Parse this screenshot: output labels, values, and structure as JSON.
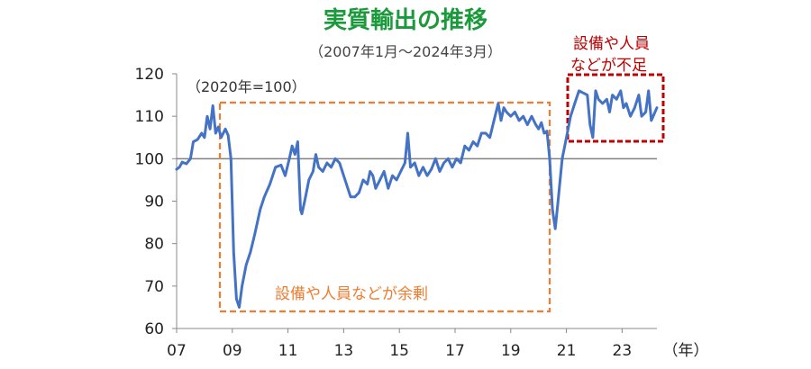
{
  "chart_data": {
    "type": "line",
    "title": "実質輸出の推移",
    "subtitle": "（2007年1月～2024年3月）",
    "base_label": "（2020年=100）",
    "x_unit_label": "（年）",
    "x_tick_labels": [
      "07",
      "09",
      "11",
      "13",
      "15",
      "17",
      "19",
      "21",
      "23"
    ],
    "x_ticks": [
      2007,
      2009,
      2011,
      2013,
      2015,
      2017,
      2019,
      2021,
      2023
    ],
    "xlim": [
      2007,
      2024.25
    ],
    "y_ticks": [
      60,
      70,
      80,
      90,
      100,
      110,
      120
    ],
    "ylim": [
      60,
      120
    ],
    "reference_line": 100,
    "grid": false,
    "line_color": "#4472c4",
    "series": [
      {
        "points": [
          [
            2007.0,
            97.5
          ],
          [
            2007.1,
            98.0
          ],
          [
            2007.2,
            99.2
          ],
          [
            2007.35,
            98.8
          ],
          [
            2007.5,
            100.0
          ],
          [
            2007.6,
            104.0
          ],
          [
            2007.75,
            104.5
          ],
          [
            2007.9,
            106.0
          ],
          [
            2008.0,
            105.0
          ],
          [
            2008.1,
            110.0
          ],
          [
            2008.2,
            107.0
          ],
          [
            2008.3,
            112.5
          ],
          [
            2008.4,
            106.0
          ],
          [
            2008.5,
            107.5
          ],
          [
            2008.6,
            105.0
          ],
          [
            2008.75,
            107.0
          ],
          [
            2008.85,
            105.5
          ],
          [
            2008.95,
            100.0
          ],
          [
            2009.05,
            78.0
          ],
          [
            2009.15,
            67.0
          ],
          [
            2009.25,
            65.0
          ],
          [
            2009.35,
            70.0
          ],
          [
            2009.5,
            75.0
          ],
          [
            2009.65,
            78.0
          ],
          [
            2009.8,
            82.0
          ],
          [
            2010.0,
            88.0
          ],
          [
            2010.15,
            91.0
          ],
          [
            2010.35,
            94.0
          ],
          [
            2010.55,
            98.0
          ],
          [
            2010.75,
            98.5
          ],
          [
            2010.9,
            96.0
          ],
          [
            2011.05,
            100.0
          ],
          [
            2011.15,
            103.0
          ],
          [
            2011.25,
            101.0
          ],
          [
            2011.35,
            104.0
          ],
          [
            2011.45,
            88.0
          ],
          [
            2011.5,
            87.0
          ],
          [
            2011.6,
            90.0
          ],
          [
            2011.75,
            95.0
          ],
          [
            2011.9,
            97.0
          ],
          [
            2012.0,
            101.0
          ],
          [
            2012.1,
            98.0
          ],
          [
            2012.25,
            97.0
          ],
          [
            2012.4,
            99.0
          ],
          [
            2012.55,
            98.0
          ],
          [
            2012.7,
            100.0
          ],
          [
            2012.85,
            99.0
          ],
          [
            2013.0,
            96.0
          ],
          [
            2013.15,
            93.0
          ],
          [
            2013.25,
            91.0
          ],
          [
            2013.4,
            91.0
          ],
          [
            2013.55,
            92.0
          ],
          [
            2013.7,
            95.0
          ],
          [
            2013.85,
            94.0
          ],
          [
            2013.95,
            97.0
          ],
          [
            2014.05,
            96.0
          ],
          [
            2014.15,
            93.0
          ],
          [
            2014.3,
            95.0
          ],
          [
            2014.45,
            97.0
          ],
          [
            2014.6,
            93.0
          ],
          [
            2014.75,
            96.0
          ],
          [
            2014.9,
            95.0
          ],
          [
            2015.05,
            97.0
          ],
          [
            2015.2,
            99.0
          ],
          [
            2015.3,
            106.0
          ],
          [
            2015.4,
            98.0
          ],
          [
            2015.55,
            99.0
          ],
          [
            2015.7,
            96.0
          ],
          [
            2015.85,
            98.0
          ],
          [
            2016.0,
            96.0
          ],
          [
            2016.15,
            97.5
          ],
          [
            2016.3,
            100.0
          ],
          [
            2016.45,
            97.0
          ],
          [
            2016.6,
            99.0
          ],
          [
            2016.75,
            100.0
          ],
          [
            2016.9,
            98.0
          ],
          [
            2017.05,
            100.0
          ],
          [
            2017.2,
            99.0
          ],
          [
            2017.35,
            103.0
          ],
          [
            2017.5,
            102.0
          ],
          [
            2017.65,
            104.0
          ],
          [
            2017.8,
            103.0
          ],
          [
            2017.95,
            106.0
          ],
          [
            2018.1,
            106.0
          ],
          [
            2018.25,
            105.0
          ],
          [
            2018.4,
            109.0
          ],
          [
            2018.55,
            113.0
          ],
          [
            2018.65,
            109.0
          ],
          [
            2018.75,
            112.0
          ],
          [
            2018.85,
            111.0
          ],
          [
            2019.0,
            110.0
          ],
          [
            2019.15,
            111.0
          ],
          [
            2019.3,
            109.0
          ],
          [
            2019.45,
            110.0
          ],
          [
            2019.6,
            108.0
          ],
          [
            2019.75,
            110.0
          ],
          [
            2019.9,
            108.0
          ],
          [
            2020.0,
            107.0
          ],
          [
            2020.1,
            108.5
          ],
          [
            2020.2,
            106.0
          ],
          [
            2020.3,
            106.5
          ],
          [
            2020.4,
            100.0
          ],
          [
            2020.5,
            88.0
          ],
          [
            2020.6,
            83.5
          ],
          [
            2020.7,
            90.0
          ],
          [
            2020.85,
            100.0
          ],
          [
            2021.0,
            105.0
          ],
          [
            2021.15,
            110.0
          ],
          [
            2021.3,
            113.0
          ],
          [
            2021.45,
            116.0
          ],
          [
            2021.6,
            115.5
          ],
          [
            2021.75,
            115.0
          ],
          [
            2021.85,
            108.0
          ],
          [
            2021.95,
            105.0
          ],
          [
            2022.05,
            116.0
          ],
          [
            2022.15,
            114.0
          ],
          [
            2022.3,
            113.0
          ],
          [
            2022.45,
            114.0
          ],
          [
            2022.55,
            111.0
          ],
          [
            2022.65,
            115.0
          ],
          [
            2022.8,
            114.0
          ],
          [
            2022.95,
            116.0
          ],
          [
            2023.05,
            112.0
          ],
          [
            2023.15,
            113.0
          ],
          [
            2023.3,
            110.0
          ],
          [
            2023.45,
            112.0
          ],
          [
            2023.6,
            115.0
          ],
          [
            2023.7,
            110.0
          ],
          [
            2023.85,
            111.0
          ],
          [
            2023.95,
            116.0
          ],
          [
            2024.05,
            109.0
          ],
          [
            2024.25,
            112.0
          ]
        ]
      }
    ]
  },
  "annotations": {
    "surplus_label": "設備や人員などが余剰",
    "surplus_color": "#ed7d31",
    "shortage_label_line1": "設備や人員",
    "shortage_label_line2": "などが不足",
    "shortage_color": "#c00000"
  }
}
